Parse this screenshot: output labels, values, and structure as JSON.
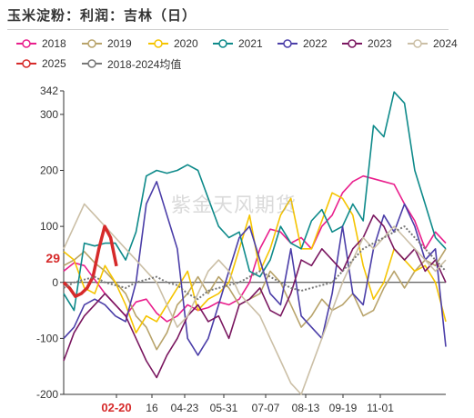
{
  "title": "玉米淀粉：利润：吉林（日）",
  "watermark": "紫金天风期货",
  "chart_data": {
    "type": "line",
    "title": "玉米淀粉：利润：吉林（日）",
    "xlabel": "",
    "ylabel": "",
    "x_ticks": [
      "02-20",
      "16",
      "04-23",
      "05-31",
      "07-07",
      "08-13",
      "09-19",
      "11-01"
    ],
    "y_ticks": [
      -200,
      -100,
      0,
      100,
      200,
      300,
      342
    ],
    "ylim": [
      -200,
      342
    ],
    "current_label": "29",
    "current_date_label": "02-20",
    "legend_position": "top",
    "series": [
      {
        "name": "2018",
        "color": "#e91e8c",
        "values": [
          20,
          35,
          30,
          5,
          -20,
          -40,
          -60,
          -35,
          -30,
          -55,
          -70,
          -60,
          -40,
          -50,
          -45,
          -35,
          -40,
          -30,
          0,
          60,
          95,
          90,
          70,
          80,
          60,
          100,
          120,
          160,
          180,
          190,
          185,
          180,
          175,
          140,
          110,
          60,
          90,
          70
        ]
      },
      {
        "name": "2019",
        "color": "#b8a36a",
        "values": [
          30,
          40,
          55,
          35,
          20,
          0,
          -20,
          -60,
          -80,
          -120,
          -90,
          -40,
          -20,
          10,
          -20,
          10,
          -10,
          -40,
          -30,
          -20,
          20,
          0,
          -40,
          -80,
          -60,
          -30,
          -50,
          -40,
          -20,
          -60,
          -50,
          -10,
          20,
          -10,
          20,
          40,
          30,
          60
        ]
      },
      {
        "name": "2020",
        "color": "#f5c400",
        "values": [
          55,
          40,
          -10,
          -20,
          30,
          0,
          -40,
          -90,
          -60,
          -70,
          -40,
          -10,
          20,
          -50,
          -30,
          -20,
          0,
          60,
          120,
          20,
          60,
          120,
          150,
          60,
          60,
          110,
          160,
          150,
          120,
          30,
          -30,
          0,
          60,
          40,
          20,
          30,
          0,
          -70
        ]
      },
      {
        "name": "2021",
        "color": "#0e8a8a",
        "values": [
          -20,
          -50,
          70,
          65,
          70,
          70,
          40,
          90,
          190,
          200,
          195,
          200,
          210,
          200,
          150,
          100,
          80,
          90,
          20,
          10,
          40,
          100,
          70,
          60,
          110,
          130,
          90,
          100,
          140,
          110,
          280,
          260,
          340,
          320,
          200,
          140,
          80,
          60
        ]
      },
      {
        "name": "2022",
        "color": "#4b3ea8",
        "values": [
          -100,
          -80,
          -40,
          -30,
          -40,
          -60,
          -70,
          0,
          140,
          180,
          120,
          60,
          -100,
          -130,
          -100,
          -40,
          20,
          80,
          100,
          40,
          -20,
          -40,
          60,
          -60,
          -80,
          -100,
          -20,
          100,
          -20,
          -40,
          60,
          120,
          90,
          140,
          100,
          40,
          60,
          -115
        ]
      },
      {
        "name": "2023",
        "color": "#7a1760",
        "values": [
          -140,
          -90,
          -60,
          -40,
          -20,
          -40,
          -60,
          -100,
          -140,
          -170,
          -130,
          -100,
          -60,
          -40,
          -70,
          -60,
          -100,
          -40,
          -30,
          -10,
          -50,
          -60,
          -20,
          40,
          30,
          60,
          40,
          20,
          60,
          80,
          120,
          100,
          60,
          40,
          60,
          20,
          40,
          0
        ]
      },
      {
        "name": "2024",
        "color": "#cbbfa6",
        "values": [
          60,
          100,
          140,
          120,
          100,
          80,
          60,
          40,
          20,
          0,
          -40,
          -80,
          -60,
          -20,
          20,
          40,
          20,
          -20,
          -40,
          -60,
          -100,
          -140,
          -180,
          -200,
          -150,
          -100,
          -50,
          0,
          40,
          80,
          60,
          80,
          100,
          80,
          60,
          40,
          20,
          40
        ]
      },
      {
        "name": "2025",
        "color": "#d62a2a",
        "values": [
          0,
          -10,
          -25,
          -20,
          -10,
          10,
          60,
          100,
          80,
          29
        ]
      },
      {
        "name": "2018-2024均值",
        "color": "#777777",
        "dashed": true,
        "values": [
          -10,
          0,
          5,
          10,
          0,
          -5,
          -10,
          0,
          5,
          10,
          0,
          -5,
          -20,
          -30,
          -15,
          -10,
          -5,
          0,
          10,
          20,
          10,
          0,
          -10,
          -15,
          -10,
          -5,
          0,
          20,
          40,
          60,
          70,
          80,
          90,
          100,
          80,
          60,
          40,
          20
        ]
      }
    ]
  }
}
